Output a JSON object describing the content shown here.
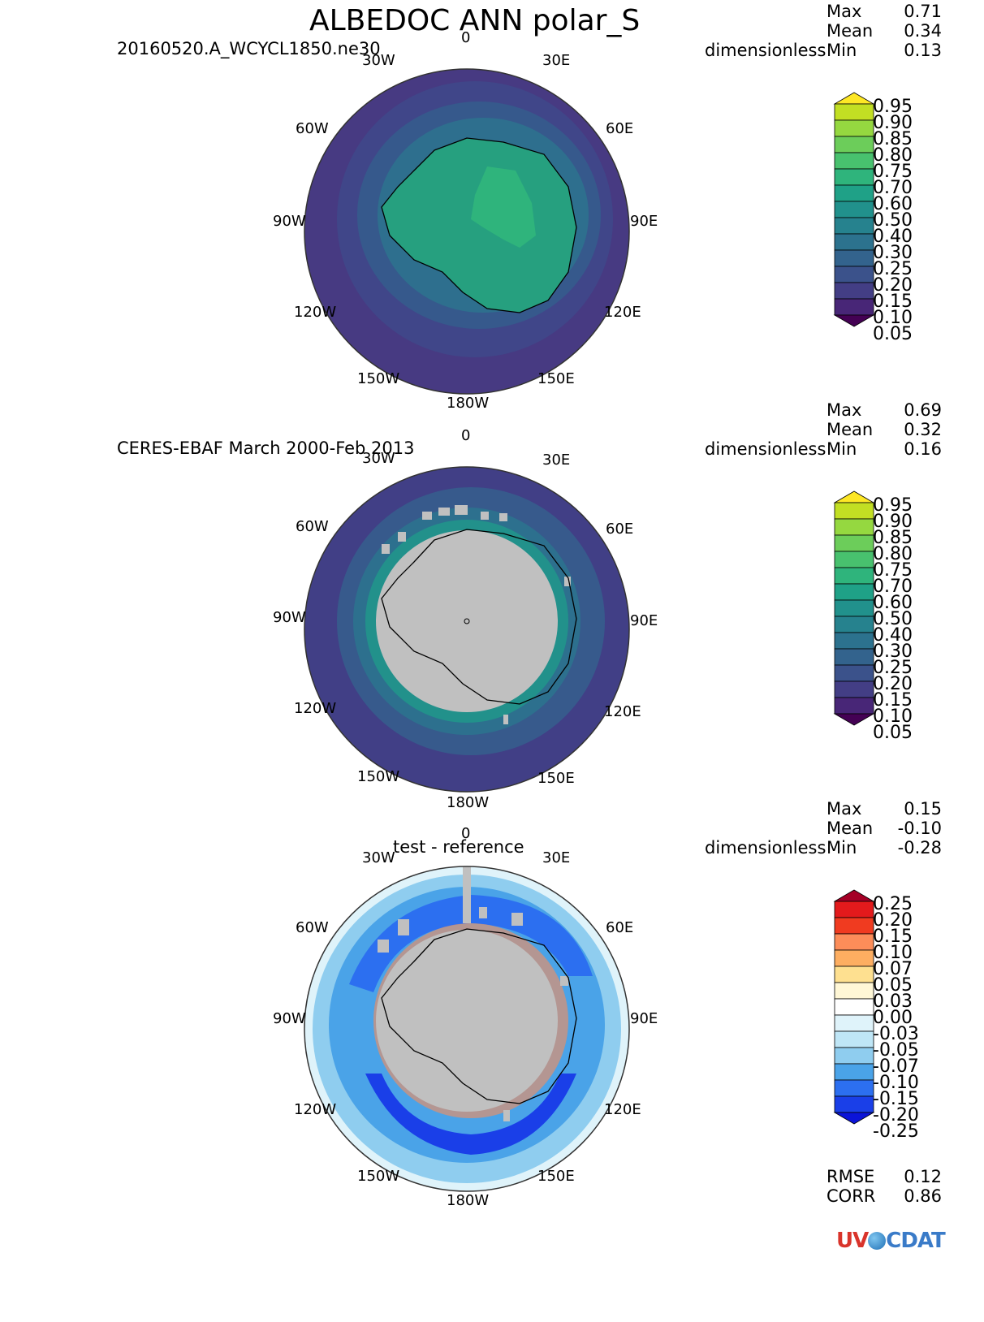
{
  "header": {
    "title": "ALBEDOC ANN polar_S"
  },
  "panels": [
    {
      "id": "test",
      "label": "20160520.A_WCYCL1850.ne30",
      "units": "dimensionless",
      "stats": {
        "max_label": "Max",
        "max": "0.71",
        "mean_label": "Mean",
        "mean": "0.34",
        "min_label": "Min",
        "min": "0.13"
      },
      "colorbar": [
        "0.95",
        "0.90",
        "0.85",
        "0.80",
        "0.75",
        "0.70",
        "0.60",
        "0.50",
        "0.40",
        "0.30",
        "0.25",
        "0.20",
        "0.15",
        "0.10",
        "0.05"
      ]
    },
    {
      "id": "reference",
      "label": "CERES-EBAF March 2000-Feb 2013",
      "units": "dimensionless",
      "stats": {
        "max_label": "Max",
        "max": "0.69",
        "mean_label": "Mean",
        "mean": "0.32",
        "min_label": "Min",
        "min": "0.16"
      },
      "colorbar": [
        "0.95",
        "0.90",
        "0.85",
        "0.80",
        "0.75",
        "0.70",
        "0.60",
        "0.50",
        "0.40",
        "0.30",
        "0.25",
        "0.20",
        "0.15",
        "0.10",
        "0.05"
      ]
    },
    {
      "id": "diff",
      "label": "test - reference",
      "units": "dimensionless",
      "stats": {
        "max_label": "Max",
        "max": "0.15",
        "mean_label": "Mean",
        "mean": "-0.10",
        "min_label": "Min",
        "min": "-0.28"
      },
      "colorbar": [
        "0.25",
        "0.20",
        "0.15",
        "0.10",
        "0.07",
        "0.05",
        "0.03",
        "0.00",
        "-0.03",
        "-0.05",
        "-0.07",
        "-0.10",
        "-0.15",
        "-0.20",
        "-0.25"
      ],
      "metrics": {
        "rmse_label": "RMSE",
        "rmse": "0.12",
        "corr_label": "CORR",
        "corr": "0.86"
      }
    }
  ],
  "longitude_labels": {
    "top": "0",
    "n30e": "30E",
    "n60e": "60E",
    "e90": "90E",
    "s120e": "120E",
    "s150e": "150E",
    "bottom": "180W",
    "s150w": "150W",
    "s120w": "120W",
    "w90": "90W",
    "n60w": "60W",
    "n30w": "30W"
  },
  "colors": {
    "viridis": [
      "#fde725",
      "#c2df23",
      "#95d840",
      "#6ccd5a",
      "#48c16e",
      "#2fb47c",
      "#1fa187",
      "#21918c",
      "#26828e",
      "#2c728e",
      "#33638d",
      "#3b528b",
      "#433e85",
      "#482677",
      "#440154"
    ],
    "diverging": [
      "#a50026",
      "#e31a1c",
      "#f03b20",
      "#fc8d59",
      "#fdae61",
      "#fee090",
      "#fff7d6",
      "#ffffff",
      "#dff3fa",
      "#bfe6f6",
      "#8fcdef",
      "#4aa3e8",
      "#2c6ff0",
      "#1a3fe8",
      "#0b14d8"
    ],
    "land_gray": "#c0c0c0"
  },
  "logo": {
    "text_uv": "UV",
    "text_cdat": "CDAT"
  }
}
